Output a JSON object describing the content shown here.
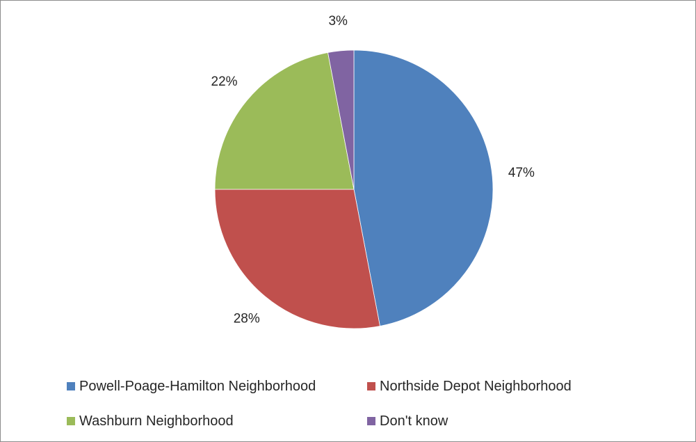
{
  "chart_data": {
    "type": "pie",
    "categories": [
      "Powell-Poage-Hamilton Neighborhood",
      "Northside Depot Neighborhood",
      "Washburn Neighborhood",
      "Don't know"
    ],
    "values": [
      47,
      28,
      22,
      3
    ],
    "data_labels": [
      "47%",
      "28%",
      "22%",
      "3%"
    ],
    "colors": [
      "#4f81bd",
      "#c0504d",
      "#9bbb59",
      "#8064a2"
    ],
    "start_angle_deg": 0,
    "direction": "clockwise",
    "legend_position": "bottom"
  }
}
